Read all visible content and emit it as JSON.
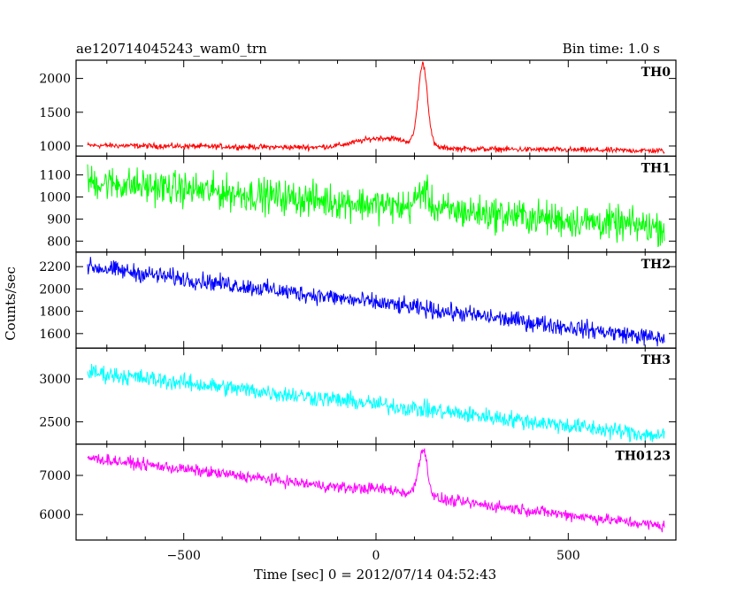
{
  "header": {
    "title": "ae120714045243_wam0_trn",
    "bin_time": "Bin time: 1.0 s"
  },
  "chart_data": {
    "type": "line",
    "title": "ae120714045243_wam0_trn",
    "xlabel": "Time [sec] 0 = 2012/07/14 04:52:43",
    "ylabel": "Counts/sec",
    "xlim": [
      -780,
      780
    ],
    "x_ticks": [
      -500,
      0,
      500
    ],
    "x_tick_labels": [
      "−500",
      "0",
      "500"
    ],
    "grid": false,
    "panels": [
      {
        "name": "TH0",
        "color": "#ff0000",
        "ylim": [
          850,
          2270
        ],
        "y_ticks": [
          1000,
          1500,
          2000
        ],
        "y_tick_labels": [
          "1000",
          "1500",
          "2000"
        ],
        "start": 1010,
        "end": 930,
        "noise": 45,
        "peak": {
          "x": 122,
          "height": 1200,
          "width": 12
        },
        "bump": {
          "x": 20,
          "height": 150,
          "width": 70
        }
      },
      {
        "name": "TH1",
        "color": "#00ff00",
        "ylim": [
          750,
          1185
        ],
        "y_ticks": [
          800,
          900,
          1000,
          1100
        ],
        "y_tick_labels": [
          "800",
          "900",
          "1000",
          "1100"
        ],
        "start": 1070,
        "end": 860,
        "noise": 85,
        "peak": {
          "x": 122,
          "height": 80,
          "width": 15
        },
        "bump": null
      },
      {
        "name": "TH2",
        "color": "#0000ff",
        "ylim": [
          1470,
          2330
        ],
        "y_ticks": [
          1600,
          1800,
          2000,
          2200
        ],
        "y_tick_labels": [
          "1600",
          "1800",
          "2000",
          "2200"
        ],
        "start": 2200,
        "end": 1550,
        "noise": 85,
        "peak": null,
        "bump": null
      },
      {
        "name": "TH3",
        "color": "#00ffff",
        "ylim": [
          2240,
          3360
        ],
        "y_ticks": [
          2500,
          3000
        ],
        "y_tick_labels": [
          "2500",
          "3000"
        ],
        "start": 3080,
        "end": 2330,
        "noise": 110,
        "peak": null,
        "bump": null
      },
      {
        "name": "TH0123",
        "color": "#ff00ff",
        "ylim": [
          5350,
          7800
        ],
        "y_ticks": [
          6000,
          7000
        ],
        "y_tick_labels": [
          "6000",
          "7000"
        ],
        "start": 7450,
        "end": 5700,
        "noise": 160,
        "peak": {
          "x": 122,
          "height": 1200,
          "width": 12
        },
        "bump": {
          "x": 30,
          "height": 100,
          "width": 60
        }
      }
    ]
  }
}
